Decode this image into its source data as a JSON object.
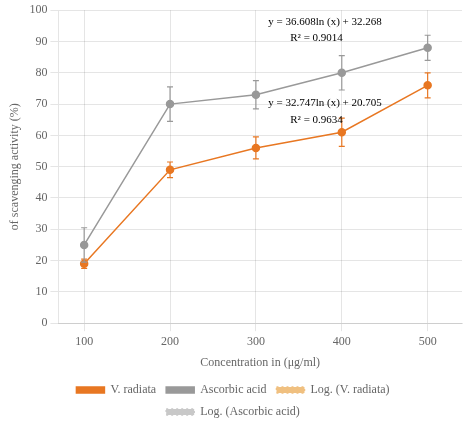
{
  "chart_data": {
    "type": "line",
    "x": [
      100,
      200,
      300,
      400,
      500
    ],
    "xlabel": "Concentration in (μg/ml)",
    "ylabel": "of scavenging activity (%)",
    "xlim": [
      70,
      540
    ],
    "xticks": [
      100,
      200,
      300,
      400,
      500
    ],
    "ylim": [
      0,
      100
    ],
    "yticks": [
      0,
      10,
      20,
      30,
      40,
      50,
      60,
      70,
      80,
      90,
      100
    ],
    "grid": true,
    "legend": "bottom",
    "annotations": [
      "y = 36.608ln (x) + 32.268\n        R² = 0.9014",
      "y = 32.747ln (x) + 20.705\n        R² = 0.9634"
    ],
    "series": [
      {
        "name": "V. radiata",
        "color": "#E87722",
        "marker": "circle",
        "line_style": "solid",
        "values": [
          19,
          49,
          56,
          61,
          76
        ],
        "errors": [
          1.5,
          2.5,
          3.5,
          4.5,
          4.0
        ]
      },
      {
        "name": "Ascorbic acid",
        "color": "#999999",
        "marker": "circle",
        "line_style": "solid",
        "values": [
          25,
          70,
          73,
          80,
          88
        ],
        "errors": [
          5.5,
          5.5,
          4.5,
          5.5,
          4.0
        ]
      },
      {
        "name": "Log. (V. radiata)",
        "color": "#F0C080",
        "line_style": "dotted",
        "values": [
          null,
          null,
          null,
          null,
          null
        ]
      },
      {
        "name": "Log. (Ascorbic acid)",
        "color": "#C8C8C8",
        "line_style": "dotted",
        "values": [
          null,
          null,
          null,
          null,
          null
        ]
      }
    ]
  }
}
